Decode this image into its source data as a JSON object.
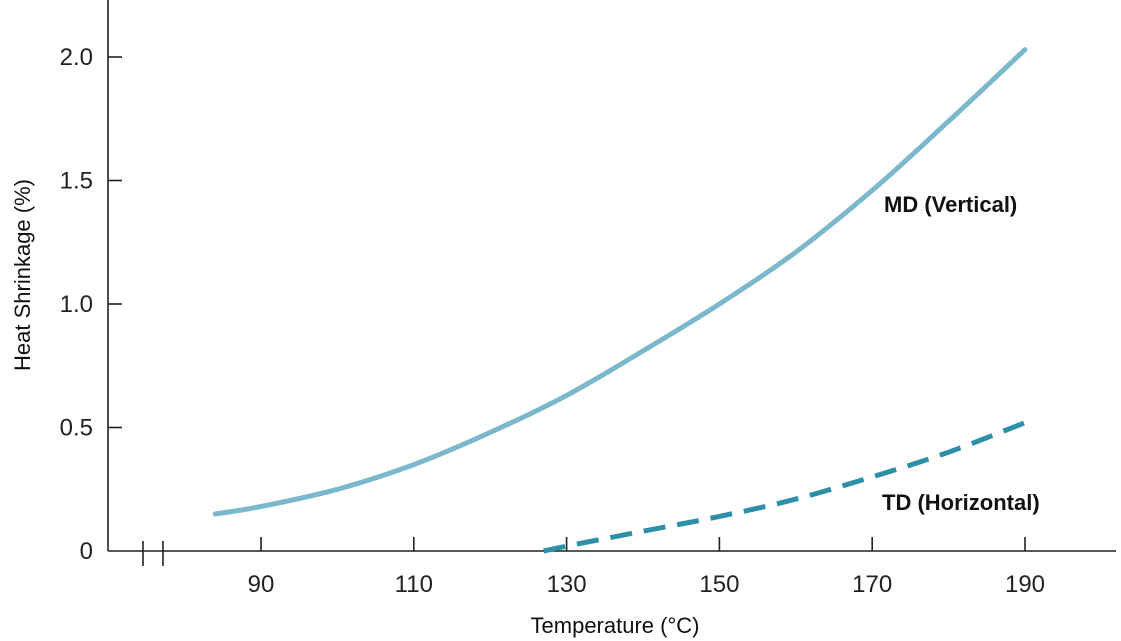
{
  "chart_data": {
    "type": "line",
    "title": "",
    "xlabel": "Temperature (°C)",
    "ylabel": "Heat Shrinkage (%)",
    "xlim": [
      78,
      206
    ],
    "ylim": [
      0,
      2.2
    ],
    "x_ticks": [
      90,
      110,
      130,
      150,
      170,
      190
    ],
    "y_ticks": [
      0,
      0.5,
      1.0,
      1.5,
      2.0
    ],
    "y_tick_labels": [
      "0",
      "0.5",
      "1.0",
      "1.5",
      "2.0"
    ],
    "x_axis_break": true,
    "grid": false,
    "series": [
      {
        "name": "MD (Vertical)",
        "style": "solid",
        "color": "#7bb8cc",
        "x": [
          84,
          90,
          100,
          110,
          120,
          130,
          140,
          150,
          160,
          170,
          180,
          190
        ],
        "y": [
          0.15,
          0.18,
          0.25,
          0.35,
          0.48,
          0.63,
          0.81,
          1.0,
          1.21,
          1.46,
          1.74,
          2.03
        ]
      },
      {
        "name": "TD (Horizontal)",
        "style": "dashed",
        "color": "#2e8fa9",
        "x": [
          127,
          130,
          140,
          150,
          160,
          170,
          180,
          190
        ],
        "y": [
          0.0,
          0.02,
          0.08,
          0.14,
          0.21,
          0.3,
          0.4,
          0.52
        ]
      }
    ]
  }
}
